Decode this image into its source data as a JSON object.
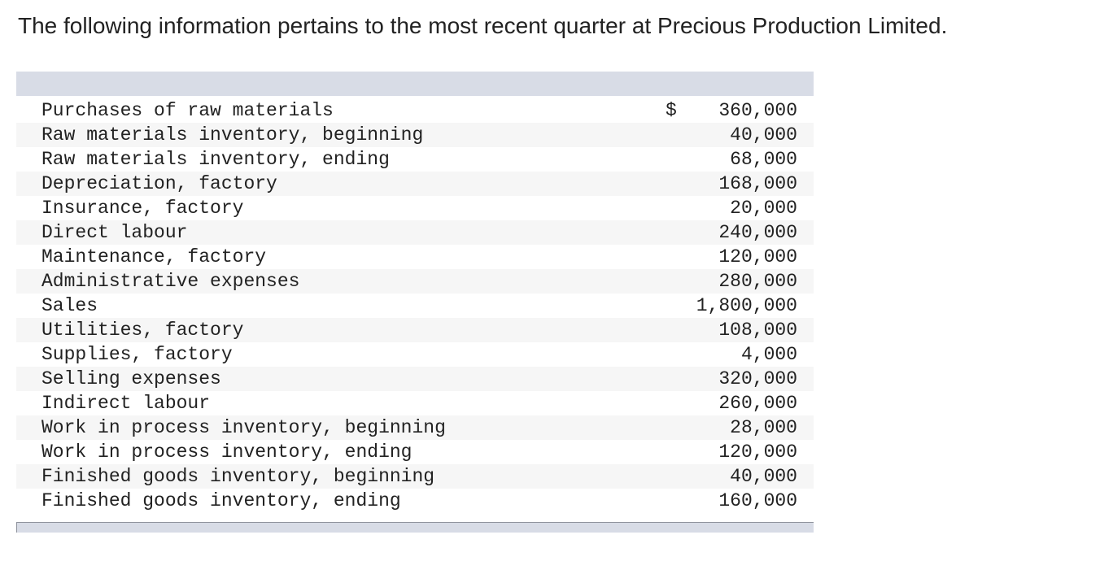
{
  "intro": "The following information pertains to the most recent quarter at Precious Production Limited.",
  "rows": [
    {
      "label": "Purchases of raw materials",
      "currency": "$",
      "amount": "360,000"
    },
    {
      "label": "Raw materials inventory, beginning",
      "currency": "",
      "amount": "40,000"
    },
    {
      "label": "Raw materials inventory, ending",
      "currency": "",
      "amount": "68,000"
    },
    {
      "label": "Depreciation, factory",
      "currency": "",
      "amount": "168,000"
    },
    {
      "label": "Insurance, factory",
      "currency": "",
      "amount": "20,000"
    },
    {
      "label": "Direct labour",
      "currency": "",
      "amount": "240,000"
    },
    {
      "label": "Maintenance, factory",
      "currency": "",
      "amount": "120,000"
    },
    {
      "label": "Administrative expenses",
      "currency": "",
      "amount": "280,000"
    },
    {
      "label": "Sales",
      "currency": "",
      "amount": "1,800,000"
    },
    {
      "label": "Utilities, factory",
      "currency": "",
      "amount": "108,000"
    },
    {
      "label": "Supplies, factory",
      "currency": "",
      "amount": "4,000"
    },
    {
      "label": "Selling expenses",
      "currency": "",
      "amount": "320,000"
    },
    {
      "label": "Indirect labour",
      "currency": "",
      "amount": "260,000"
    },
    {
      "label": "Work in process inventory, beginning",
      "currency": "",
      "amount": "28,000"
    },
    {
      "label": "Work in process inventory, ending",
      "currency": "",
      "amount": "120,000"
    },
    {
      "label": "Finished goods inventory, beginning",
      "currency": "",
      "amount": "40,000"
    },
    {
      "label": "Finished goods inventory, ending",
      "currency": "",
      "amount": "160,000"
    }
  ]
}
